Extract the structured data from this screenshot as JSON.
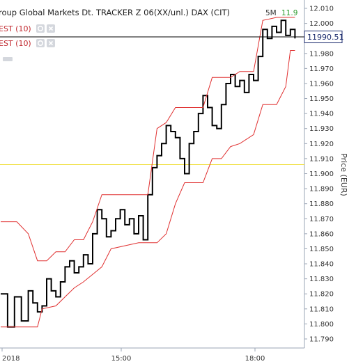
{
  "header": {
    "title": "roup Global Markets Dt. TRACKER Z 06(XX/unl.) DAX (CIT)",
    "interval": "5M",
    "change": "11.9"
  },
  "legend": [
    {
      "label": "EST (10)",
      "color": "#c0272d"
    },
    {
      "label": "EST (10)",
      "color": "#c0272d"
    }
  ],
  "colors": {
    "price": "#000000",
    "band": "#e03030",
    "hline": "#f0e040",
    "crosshair": "#000000",
    "flag_border": "#1a2a6c"
  },
  "price_flag": "11990.51",
  "chart_data": {
    "type": "line",
    "ylabel": "Price (EUR)",
    "ylim": [
      11785,
      12012
    ],
    "y_ticks": [
      "12.010",
      "12.000",
      "11.990",
      "11.980",
      "11.970",
      "11.960",
      "11.950",
      "11.940",
      "11.930",
      "11.920",
      "11.910",
      "11.900",
      "11.890",
      "11.880",
      "11.870",
      "11.860",
      "11.850",
      "11.840",
      "11.830",
      "11.820",
      "11.810",
      "11.800",
      "11.790"
    ],
    "x_ticks": [
      "2018",
      "15:00",
      "18:00"
    ],
    "reference_line": 11906,
    "crosshair_value": 11991,
    "series": [
      {
        "role": "price",
        "points": [
          [
            0,
            11820
          ],
          [
            1.5,
            11820
          ],
          [
            1.5,
            11798
          ],
          [
            3,
            11798
          ],
          [
            3,
            11818
          ],
          [
            4.5,
            11818
          ],
          [
            4.5,
            11802
          ],
          [
            6,
            11802
          ],
          [
            6,
            11822
          ],
          [
            7,
            11822
          ],
          [
            7,
            11814
          ],
          [
            8,
            11814
          ],
          [
            8,
            11808
          ],
          [
            9,
            11808
          ],
          [
            9,
            11812
          ],
          [
            10,
            11812
          ],
          [
            10,
            11830
          ],
          [
            11,
            11830
          ],
          [
            11,
            11822
          ],
          [
            12,
            11822
          ],
          [
            12,
            11818
          ],
          [
            13,
            11818
          ],
          [
            13,
            11828
          ],
          [
            14,
            11828
          ],
          [
            14,
            11838
          ],
          [
            15,
            11838
          ],
          [
            15,
            11842
          ],
          [
            16,
            11842
          ],
          [
            16,
            11834
          ],
          [
            17,
            11834
          ],
          [
            17,
            11838
          ],
          [
            18,
            11838
          ],
          [
            18,
            11846
          ],
          [
            19,
            11846
          ],
          [
            19,
            11840
          ],
          [
            20,
            11840
          ],
          [
            20,
            11860
          ],
          [
            21,
            11860
          ],
          [
            21,
            11876
          ],
          [
            22,
            11876
          ],
          [
            22,
            11870
          ],
          [
            23,
            11870
          ],
          [
            23,
            11858
          ],
          [
            24,
            11858
          ],
          [
            24,
            11862
          ],
          [
            25,
            11862
          ],
          [
            25,
            11870
          ],
          [
            26,
            11870
          ],
          [
            26,
            11876
          ],
          [
            27,
            11876
          ],
          [
            27,
            11866
          ],
          [
            28,
            11866
          ],
          [
            28,
            11870
          ],
          [
            29,
            11870
          ],
          [
            29,
            11860
          ],
          [
            30,
            11860
          ],
          [
            30,
            11872
          ],
          [
            31,
            11872
          ],
          [
            31,
            11856
          ],
          [
            32,
            11856
          ],
          [
            32,
            11886
          ],
          [
            33,
            11886
          ],
          [
            33,
            11904
          ],
          [
            34,
            11904
          ],
          [
            34,
            11912
          ],
          [
            35,
            11912
          ],
          [
            35,
            11920
          ],
          [
            36,
            11920
          ],
          [
            36,
            11932
          ],
          [
            37,
            11932
          ],
          [
            37,
            11928
          ],
          [
            38,
            11928
          ],
          [
            38,
            11924
          ],
          [
            39,
            11924
          ],
          [
            39,
            11910
          ],
          [
            40,
            11910
          ],
          [
            40,
            11900
          ],
          [
            41,
            11900
          ],
          [
            41,
            11920
          ],
          [
            42,
            11920
          ],
          [
            42,
            11928
          ],
          [
            43,
            11928
          ],
          [
            43,
            11940
          ],
          [
            44,
            11940
          ],
          [
            44,
            11952
          ],
          [
            45,
            11952
          ],
          [
            45,
            11944
          ],
          [
            46,
            11944
          ],
          [
            46,
            11932
          ],
          [
            47,
            11932
          ],
          [
            47,
            11930
          ],
          [
            48,
            11930
          ],
          [
            48,
            11946
          ],
          [
            49,
            11946
          ],
          [
            49,
            11960
          ],
          [
            50,
            11960
          ],
          [
            50,
            11966
          ],
          [
            51,
            11966
          ],
          [
            51,
            11958
          ],
          [
            52,
            11958
          ],
          [
            52,
            11962
          ],
          [
            53,
            11962
          ],
          [
            53,
            11954
          ],
          [
            54,
            11954
          ],
          [
            54,
            11966
          ],
          [
            55,
            11966
          ],
          [
            55,
            11962
          ],
          [
            56,
            11962
          ],
          [
            56,
            11978
          ],
          [
            57,
            11978
          ],
          [
            57,
            11996
          ],
          [
            58,
            11996
          ],
          [
            58,
            11990
          ],
          [
            59,
            11990
          ],
          [
            59,
            11998
          ],
          [
            60,
            11998
          ],
          [
            60,
            11994
          ],
          [
            61,
            11994
          ],
          [
            61,
            12002
          ],
          [
            62,
            12002
          ],
          [
            62,
            11992
          ],
          [
            63,
            11992
          ],
          [
            63,
            11996
          ],
          [
            64,
            11996
          ],
          [
            64,
            11990
          ]
        ]
      },
      {
        "role": "upper-band",
        "points": [
          [
            0,
            11868
          ],
          [
            3.5,
            11868
          ],
          [
            6,
            11860
          ],
          [
            8,
            11842
          ],
          [
            10,
            11842
          ],
          [
            12,
            11848
          ],
          [
            14,
            11848
          ],
          [
            16,
            11856
          ],
          [
            18,
            11856
          ],
          [
            20,
            11868
          ],
          [
            22,
            11886
          ],
          [
            30,
            11886
          ],
          [
            32,
            11886
          ],
          [
            34,
            11930
          ],
          [
            36,
            11934
          ],
          [
            38,
            11944
          ],
          [
            42,
            11944
          ],
          [
            44,
            11944
          ],
          [
            46,
            11964
          ],
          [
            50,
            11964
          ],
          [
            52,
            11968
          ],
          [
            55,
            11968
          ],
          [
            57,
            12002
          ],
          [
            60,
            12004
          ],
          [
            64,
            12004
          ]
        ]
      },
      {
        "role": "lower-band",
        "points": [
          [
            0,
            11798
          ],
          [
            8,
            11798
          ],
          [
            9,
            11810
          ],
          [
            12,
            11812
          ],
          [
            14,
            11818
          ],
          [
            16,
            11824
          ],
          [
            18,
            11828
          ],
          [
            22,
            11838
          ],
          [
            24,
            11850
          ],
          [
            30,
            11854
          ],
          [
            34,
            11854
          ],
          [
            36,
            11860
          ],
          [
            38,
            11880
          ],
          [
            40,
            11894
          ],
          [
            44,
            11894
          ],
          [
            46,
            11910
          ],
          [
            48,
            11910
          ],
          [
            50,
            11918
          ],
          [
            52,
            11920
          ],
          [
            55,
            11926
          ],
          [
            57,
            11946
          ],
          [
            60,
            11946
          ],
          [
            62,
            11958
          ],
          [
            63,
            11982
          ],
          [
            64,
            11982
          ]
        ]
      }
    ]
  }
}
